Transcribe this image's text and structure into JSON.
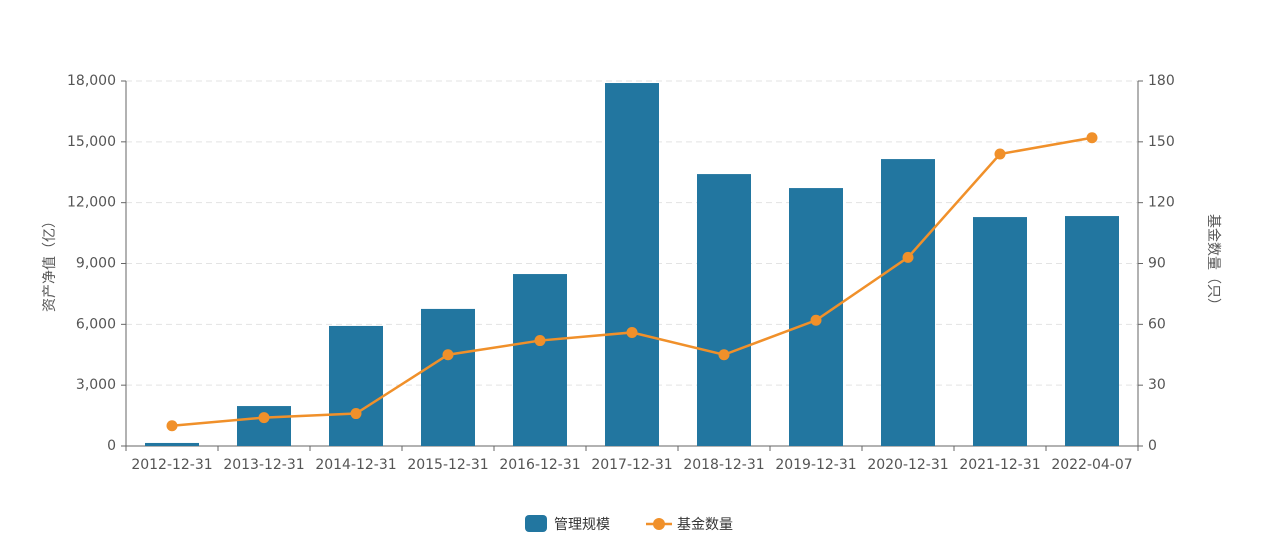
{
  "chart_data": {
    "type": "bar-line",
    "categories": [
      "2012-12-31",
      "2013-12-31",
      "2014-12-31",
      "2015-12-31",
      "2016-12-31",
      "2017-12-31",
      "2018-12-31",
      "2019-12-31",
      "2020-12-31",
      "2021-12-31",
      "2022-04-07"
    ],
    "series": [
      {
        "name": "管理规模",
        "type": "bar",
        "color": "#2276a0",
        "values": [
          150,
          1970,
          5920,
          6760,
          8480,
          17900,
          13410,
          12720,
          14150,
          11290,
          11340
        ]
      },
      {
        "name": "基金数量",
        "type": "line",
        "color": "#f0902a",
        "axis": "y2",
        "values": [
          10,
          14,
          16,
          45,
          52,
          56,
          45,
          62,
          93,
          144,
          152
        ]
      }
    ],
    "y_label": "资产净值（亿）",
    "y2_label": "基金数量（只）",
    "ylim": [
      0,
      18000
    ],
    "yticks": [
      0,
      {
        "value": 3000,
        "label": "3,000"
      },
      {
        "value": 6000,
        "label": "6,000"
      },
      {
        "value": 9000,
        "label": "9,000"
      },
      {
        "value": 12000,
        "label": "12,000"
      },
      {
        "value": 15000,
        "label": "15,000"
      },
      {
        "value": 18000,
        "label": "18,000"
      }
    ],
    "y2lim": [
      0,
      180
    ],
    "y2ticks": [
      0,
      30,
      60,
      90,
      120,
      150,
      180
    ],
    "grid": true,
    "legend": "bottom"
  }
}
